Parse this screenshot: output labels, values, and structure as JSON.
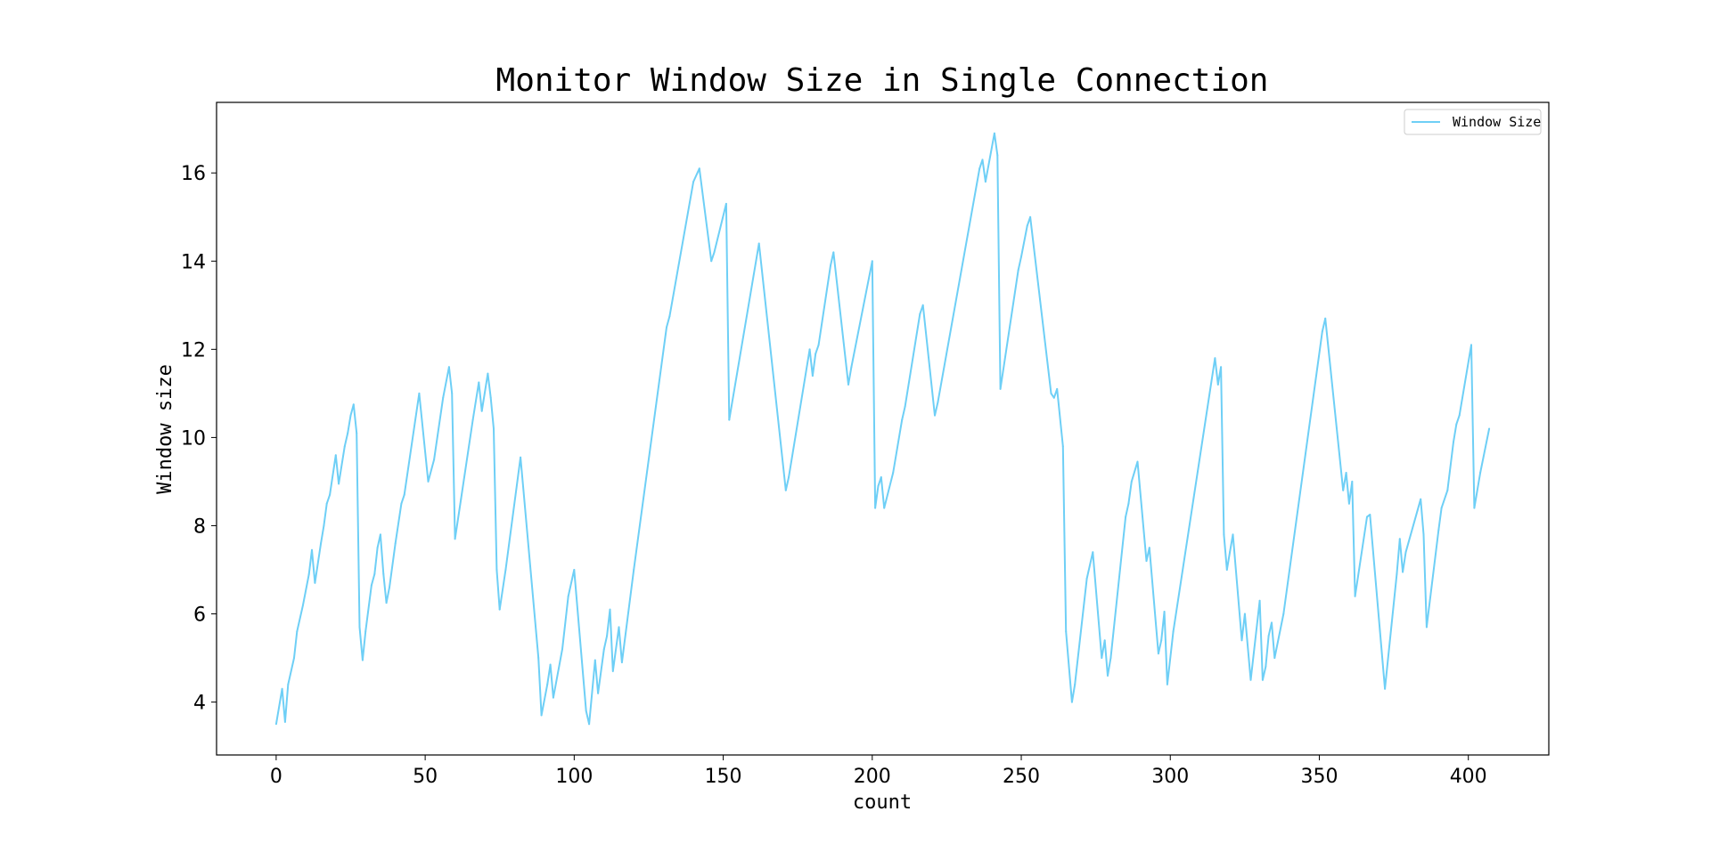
{
  "chart_data": {
    "type": "line",
    "title": "Monitor Window Size in Single Connection",
    "xlabel": "count",
    "ylabel": "Window size",
    "xlim": [
      -20,
      427
    ],
    "ylim": [
      2.8,
      17.6
    ],
    "xticks": [
      0,
      50,
      100,
      150,
      200,
      250,
      300,
      350,
      400
    ],
    "yticks": [
      4,
      6,
      8,
      10,
      12,
      14,
      16
    ],
    "grid": false,
    "legend_position": "top-right",
    "line_color": "#6ecff6",
    "series": [
      {
        "name": "Window Size",
        "points": [
          [
            0,
            3.5
          ],
          [
            2,
            4.3
          ],
          [
            3,
            3.55
          ],
          [
            4,
            4.4
          ],
          [
            6,
            5.0
          ],
          [
            7,
            5.6
          ],
          [
            9,
            6.2
          ],
          [
            11,
            6.9
          ],
          [
            12,
            7.45
          ],
          [
            13,
            6.7
          ],
          [
            15,
            7.6
          ],
          [
            16,
            8.0
          ],
          [
            17,
            8.5
          ],
          [
            18,
            8.7
          ],
          [
            20,
            9.6
          ],
          [
            21,
            8.95
          ],
          [
            23,
            9.8
          ],
          [
            24,
            10.1
          ],
          [
            25,
            10.5
          ],
          [
            26,
            10.75
          ],
          [
            27,
            10.1
          ],
          [
            28,
            5.7
          ],
          [
            29,
            4.95
          ],
          [
            30,
            5.6
          ],
          [
            32,
            6.65
          ],
          [
            33,
            6.9
          ],
          [
            34,
            7.5
          ],
          [
            35,
            7.8
          ],
          [
            36,
            6.9
          ],
          [
            37,
            6.25
          ],
          [
            38,
            6.6
          ],
          [
            40,
            7.6
          ],
          [
            42,
            8.5
          ],
          [
            43,
            8.7
          ],
          [
            48,
            11.0
          ],
          [
            51,
            9.0
          ],
          [
            53,
            9.5
          ],
          [
            56,
            10.9
          ],
          [
            58,
            11.6
          ],
          [
            59,
            11.0
          ],
          [
            60,
            7.7
          ],
          [
            62,
            8.6
          ],
          [
            66,
            10.4
          ],
          [
            68,
            11.25
          ],
          [
            69,
            10.6
          ],
          [
            71,
            11.45
          ],
          [
            72,
            10.9
          ],
          [
            73,
            10.2
          ],
          [
            74,
            7.0
          ],
          [
            75,
            6.1
          ],
          [
            77,
            7.0
          ],
          [
            82,
            9.55
          ],
          [
            88,
            5.0
          ],
          [
            89,
            3.7
          ],
          [
            91,
            4.4
          ],
          [
            92,
            4.85
          ],
          [
            93,
            4.1
          ],
          [
            96,
            5.2
          ],
          [
            98,
            6.4
          ],
          [
            100,
            7.0
          ],
          [
            104,
            3.8
          ],
          [
            105,
            3.5
          ],
          [
            107,
            4.95
          ],
          [
            108,
            4.2
          ],
          [
            110,
            5.2
          ],
          [
            111,
            5.5
          ],
          [
            112,
            6.1
          ],
          [
            113,
            4.7
          ],
          [
            115,
            5.7
          ],
          [
            116,
            4.9
          ],
          [
            120,
            7.0
          ],
          [
            131,
            12.5
          ],
          [
            132,
            12.75
          ],
          [
            140,
            15.8
          ],
          [
            142,
            16.1
          ],
          [
            146,
            14.0
          ],
          [
            147,
            14.2
          ],
          [
            151,
            15.3
          ],
          [
            152,
            10.4
          ],
          [
            162,
            14.4
          ],
          [
            171,
            8.8
          ],
          [
            172,
            9.1
          ],
          [
            179,
            12.0
          ],
          [
            180,
            11.4
          ],
          [
            181,
            11.9
          ],
          [
            182,
            12.1
          ],
          [
            186,
            13.9
          ],
          [
            187,
            14.2
          ],
          [
            192,
            11.2
          ],
          [
            193,
            11.6
          ],
          [
            200,
            14.0
          ],
          [
            201,
            8.4
          ],
          [
            202,
            8.9
          ],
          [
            203,
            9.1
          ],
          [
            204,
            8.4
          ],
          [
            207,
            9.2
          ],
          [
            210,
            10.4
          ],
          [
            211,
            10.7
          ],
          [
            216,
            12.8
          ],
          [
            217,
            13.0
          ],
          [
            221,
            10.5
          ],
          [
            222,
            10.8
          ],
          [
            236,
            16.1
          ],
          [
            237,
            16.3
          ],
          [
            238,
            15.8
          ],
          [
            241,
            16.9
          ],
          [
            242,
            16.4
          ],
          [
            243,
            11.1
          ],
          [
            249,
            13.8
          ],
          [
            250,
            14.1
          ],
          [
            252,
            14.8
          ],
          [
            253,
            15.0
          ],
          [
            260,
            11.0
          ],
          [
            261,
            10.9
          ],
          [
            262,
            11.1
          ],
          [
            264,
            9.8
          ],
          [
            265,
            5.6
          ],
          [
            267,
            4.0
          ],
          [
            268,
            4.4
          ],
          [
            272,
            6.8
          ],
          [
            274,
            7.4
          ],
          [
            277,
            5.0
          ],
          [
            278,
            5.4
          ],
          [
            279,
            4.6
          ],
          [
            280,
            5.0
          ],
          [
            285,
            8.2
          ],
          [
            286,
            8.5
          ],
          [
            287,
            9.0
          ],
          [
            289,
            9.45
          ],
          [
            292,
            7.2
          ],
          [
            293,
            7.5
          ],
          [
            296,
            5.1
          ],
          [
            297,
            5.4
          ],
          [
            298,
            6.05
          ],
          [
            299,
            4.4
          ],
          [
            301,
            5.6
          ],
          [
            315,
            11.8
          ],
          [
            316,
            11.2
          ],
          [
            317,
            11.6
          ],
          [
            318,
            7.8
          ],
          [
            319,
            7.0
          ],
          [
            320,
            7.4
          ],
          [
            321,
            7.8
          ],
          [
            324,
            5.4
          ],
          [
            325,
            6.0
          ],
          [
            327,
            4.5
          ],
          [
            330,
            6.3
          ],
          [
            331,
            4.5
          ],
          [
            332,
            4.8
          ],
          [
            333,
            5.5
          ],
          [
            334,
            5.8
          ],
          [
            335,
            5.0
          ],
          [
            338,
            6.0
          ],
          [
            351,
            12.4
          ],
          [
            352,
            12.7
          ],
          [
            358,
            8.8
          ],
          [
            359,
            9.2
          ],
          [
            360,
            8.5
          ],
          [
            361,
            9.0
          ],
          [
            362,
            6.4
          ],
          [
            366,
            8.2
          ],
          [
            367,
            8.25
          ],
          [
            372,
            4.3
          ],
          [
            376,
            6.9
          ],
          [
            377,
            7.7
          ],
          [
            378,
            6.95
          ],
          [
            379,
            7.4
          ],
          [
            384,
            8.6
          ],
          [
            385,
            7.8
          ],
          [
            386,
            5.7
          ],
          [
            390,
            7.9
          ],
          [
            391,
            8.4
          ],
          [
            393,
            8.8
          ],
          [
            395,
            9.9
          ],
          [
            396,
            10.3
          ],
          [
            397,
            10.5
          ],
          [
            401,
            12.1
          ],
          [
            402,
            8.4
          ],
          [
            404,
            9.2
          ],
          [
            407,
            10.2
          ]
        ]
      }
    ]
  }
}
